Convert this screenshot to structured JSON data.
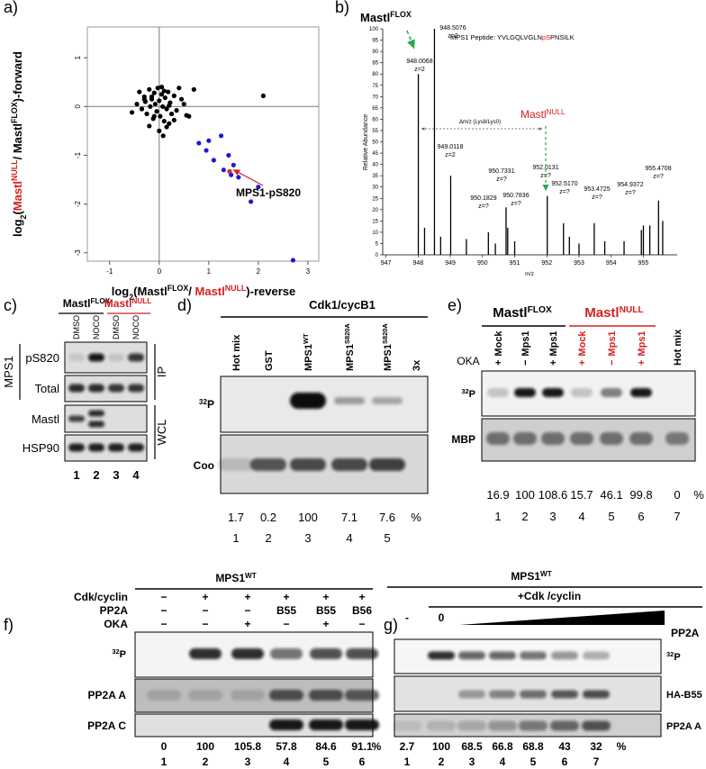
{
  "panel_labels": [
    "a)",
    "b)",
    "c)",
    "d)",
    "e)",
    "f)",
    "g)"
  ],
  "chart_data": [
    {
      "type": "scatter",
      "xlabel": [
        "log",
        "2",
        "(Mastl",
        "FLOX",
        "/ ",
        "Mastl",
        "NULL",
        ")-reverse"
      ],
      "ylabel": [
        "log",
        "2",
        "(",
        "Mastl",
        "NULL",
        "/ Mastl",
        "FLOX",
        ")-forward"
      ],
      "xlim": [
        -1.45,
        3.22
      ],
      "ylim": [
        -3.17,
        1.63
      ],
      "xticks": [
        -1,
        0,
        1,
        2,
        3
      ],
      "yticks": [
        1,
        0,
        -1,
        -2,
        -3
      ],
      "series": [
        {
          "color": "#000000",
          "x": [
            -0.55,
            -0.45,
            -0.4,
            -0.35,
            -0.3,
            -0.28,
            -0.25,
            -0.2,
            -0.18,
            -0.15,
            -0.12,
            -0.1,
            -0.08,
            -0.05,
            -0.03,
            0,
            0.02,
            0.05,
            0.07,
            0.1,
            0.12,
            0.15,
            0.18,
            0.2,
            0.22,
            0.25,
            0.3,
            0.35,
            0.4,
            0.5,
            0.6,
            0.7,
            -0.2,
            -0.1,
            0.05,
            0.1,
            0.15,
            -0.3,
            0.0,
            0.3,
            0.45,
            -0.15,
            0.08,
            0.2,
            0.55,
            2.1
          ],
          "y": [
            -0.12,
            0.05,
            0.3,
            -0.05,
            0.2,
            0.1,
            -0.15,
            0.35,
            0.0,
            0.15,
            -0.25,
            0.28,
            0.05,
            -0.1,
            0.38,
            0.12,
            -0.2,
            0.25,
            0.0,
            -0.3,
            0.18,
            -0.05,
            0.3,
            -0.35,
            0.08,
            -0.15,
            0.22,
            -0.08,
            0.38,
            0.05,
            -0.2,
            0.35,
            -0.4,
            -0.2,
            0.4,
            0.32,
            -0.42,
            0.15,
            -0.5,
            -0.28,
            0.15,
            0.2,
            -0.6,
            0.02,
            -0.18,
            0.22
          ]
        },
        {
          "color": "#1a1ad6",
          "x": [
            0.8,
            1.0,
            1.25,
            0.95,
            1.1,
            1.4,
            1.5,
            1.3,
            1.45,
            1.6,
            2.0,
            1.85,
            2.7
          ],
          "y": [
            -0.75,
            -0.7,
            -0.6,
            -0.9,
            -1.1,
            -1.0,
            -1.2,
            -1.3,
            -1.4,
            -1.45,
            -1.65,
            -1.95,
            -3.15
          ]
        },
        {
          "color": "#e02020",
          "x": [
            1.42
          ],
          "y": [
            -1.33
          ]
        }
      ],
      "annotation": "MPS1-pS820"
    },
    {
      "type": "stem",
      "title": {
        "text": "Mastl",
        "sup": "FLOX"
      },
      "peptide": [
        "MPS1 Peptide: YVLGQLVGLN",
        "pS",
        "PNSILK"
      ],
      "annotation": {
        "text": "Mastl",
        "sup": "NULL"
      },
      "shift_label": "Δm/z (Lys8/Lys0)",
      "ylabel": "Relative Abundance",
      "xlabel": "m/z",
      "x": [
        948.0068,
        948.2,
        948.5076,
        948.7,
        949.0118,
        949.5,
        950.1829,
        950.4,
        950.7331,
        950.7836,
        951.0,
        952.0131,
        952.517,
        952.7,
        953.0,
        953.4725,
        953.8,
        954.4,
        954.9372,
        955.0,
        955.2,
        955.4708,
        955.6
      ],
      "values": [
        80,
        12,
        100,
        8,
        35,
        7,
        10,
        5,
        21,
        12,
        6,
        26,
        14,
        8,
        5,
        14,
        6,
        6,
        11,
        13,
        13,
        24,
        15
      ],
      "color": "#000000",
      "xlim": [
        946.9,
        956.05
      ],
      "ylim": [
        0,
        100
      ],
      "xticks": [
        947,
        948,
        949,
        950,
        951,
        952,
        953,
        954,
        955
      ],
      "yticks": [
        0,
        5,
        10,
        15,
        20,
        25,
        30,
        35,
        40,
        45,
        50,
        55,
        60,
        65,
        70,
        75,
        80,
        85,
        90,
        95,
        100
      ],
      "peak_labels": [
        {
          "mz": "948.0068",
          "charge": "z=2"
        },
        {
          "mz": "948.5076",
          "charge": "z=2"
        },
        {
          "mz": "949.0118",
          "charge": "z=2"
        },
        {
          "mz": "950.1829",
          "charge": "z=?"
        },
        {
          "mz": "950.7331",
          "charge": "z=?"
        },
        {
          "mz": "950.7836",
          "charge": "z=?"
        },
        {
          "mz": "952.0131",
          "charge": "z=?"
        },
        {
          "mz": "952.5170",
          "charge": "z=?"
        },
        {
          "mz": "953.4725",
          "charge": "z=?"
        },
        {
          "mz": "954.9372",
          "charge": "z=?"
        },
        {
          "mz": "955.4708",
          "charge": "z=?"
        }
      ]
    }
  ],
  "blot_c": {
    "groups": [
      {
        "text": "Mastl",
        "sup": "FLOX"
      },
      {
        "text": "Mastl",
        "sup": "NULL"
      }
    ],
    "lanes": [
      "DMSO",
      "NOCO",
      "DMSO",
      "NOCO"
    ],
    "protein": "MPS1",
    "rows": [
      "pS820",
      "Total",
      "Mastl",
      "HSP90"
    ],
    "sections": [
      "IP",
      "WCL"
    ],
    "lane_numbers": [
      1,
      2,
      3,
      4
    ]
  },
  "blot_d": {
    "header": "Cdk1/cycB1",
    "lanes": [
      {
        "text": "Hot mix"
      },
      {
        "text": "GST"
      },
      {
        "text": "MPS1",
        "sup": "WT"
      },
      {
        "text": "MPS1",
        "sup": "S820A"
      },
      {
        "text": "MPS1",
        "sup": "S820A"
      }
    ],
    "lane_suffix": "3x",
    "rows": [
      {
        "pre": "32",
        "text": "P"
      },
      {
        "text": "Coo"
      }
    ],
    "quantification": [
      1.7,
      0.2,
      100,
      7.1,
      7.6
    ],
    "unit": "%",
    "lane_numbers": [
      1,
      2,
      3,
      4,
      5
    ]
  },
  "blot_e": {
    "groups": [
      {
        "text": "Mastl",
        "sup": "FLOX"
      },
      {
        "text": "Mastl",
        "sup": "NULL"
      }
    ],
    "treatment": "OKA",
    "treatment_signs": [
      "+",
      "−",
      "+",
      "+",
      "−",
      "+"
    ],
    "lanes": [
      "Mock",
      "Mps1",
      "Mps1",
      "Mock",
      "Mps1",
      "Mps1",
      "Hot mix"
    ],
    "rows": [
      {
        "pre": "32",
        "text": "P"
      },
      {
        "text": "MBP"
      }
    ],
    "quantification": [
      16.9,
      100,
      108.6,
      15.7,
      46.1,
      99.8,
      0
    ],
    "unit": "%",
    "lane_numbers": [
      1,
      2,
      3,
      4,
      5,
      6,
      7
    ]
  },
  "blot_f": {
    "header": {
      "text": "MPS1",
      "sup": "WT"
    },
    "conditions": [
      {
        "label": "Cdk/cyclin",
        "values": [
          "−",
          "+",
          "+",
          "+",
          "+",
          "+"
        ]
      },
      {
        "label": "PP2A",
        "values": [
          "−",
          "−",
          "−",
          "B55",
          "B55",
          "B56"
        ]
      },
      {
        "label": "OKA",
        "values": [
          "−",
          "−",
          "+",
          "−",
          "+",
          "−"
        ]
      }
    ],
    "rows": [
      {
        "pre": "32",
        "text": "P"
      },
      {
        "text": "PP2A A"
      },
      {
        "text": "PP2A C"
      }
    ],
    "quantification": [
      0,
      100,
      105.8,
      57.8,
      84.6,
      91.1
    ],
    "unit": "%",
    "lane_numbers": [
      1,
      2,
      3,
      4,
      5,
      6
    ]
  },
  "blot_g": {
    "header": {
      "text": "MPS1",
      "sup": "WT"
    },
    "treatment": "+Cdk /cyclin",
    "untreated": "-",
    "zero": "0",
    "gradient_label": "PP2A",
    "rows": [
      {
        "pre": "32",
        "text": "P"
      },
      {
        "text": "HA-B55"
      },
      {
        "text": "PP2A A"
      }
    ],
    "quantification": [
      2.7,
      100,
      68.5,
      66.8,
      68.8,
      43,
      32
    ],
    "unit": "%",
    "lane_numbers": [
      1,
      2,
      3,
      4,
      5,
      6,
      7
    ]
  }
}
